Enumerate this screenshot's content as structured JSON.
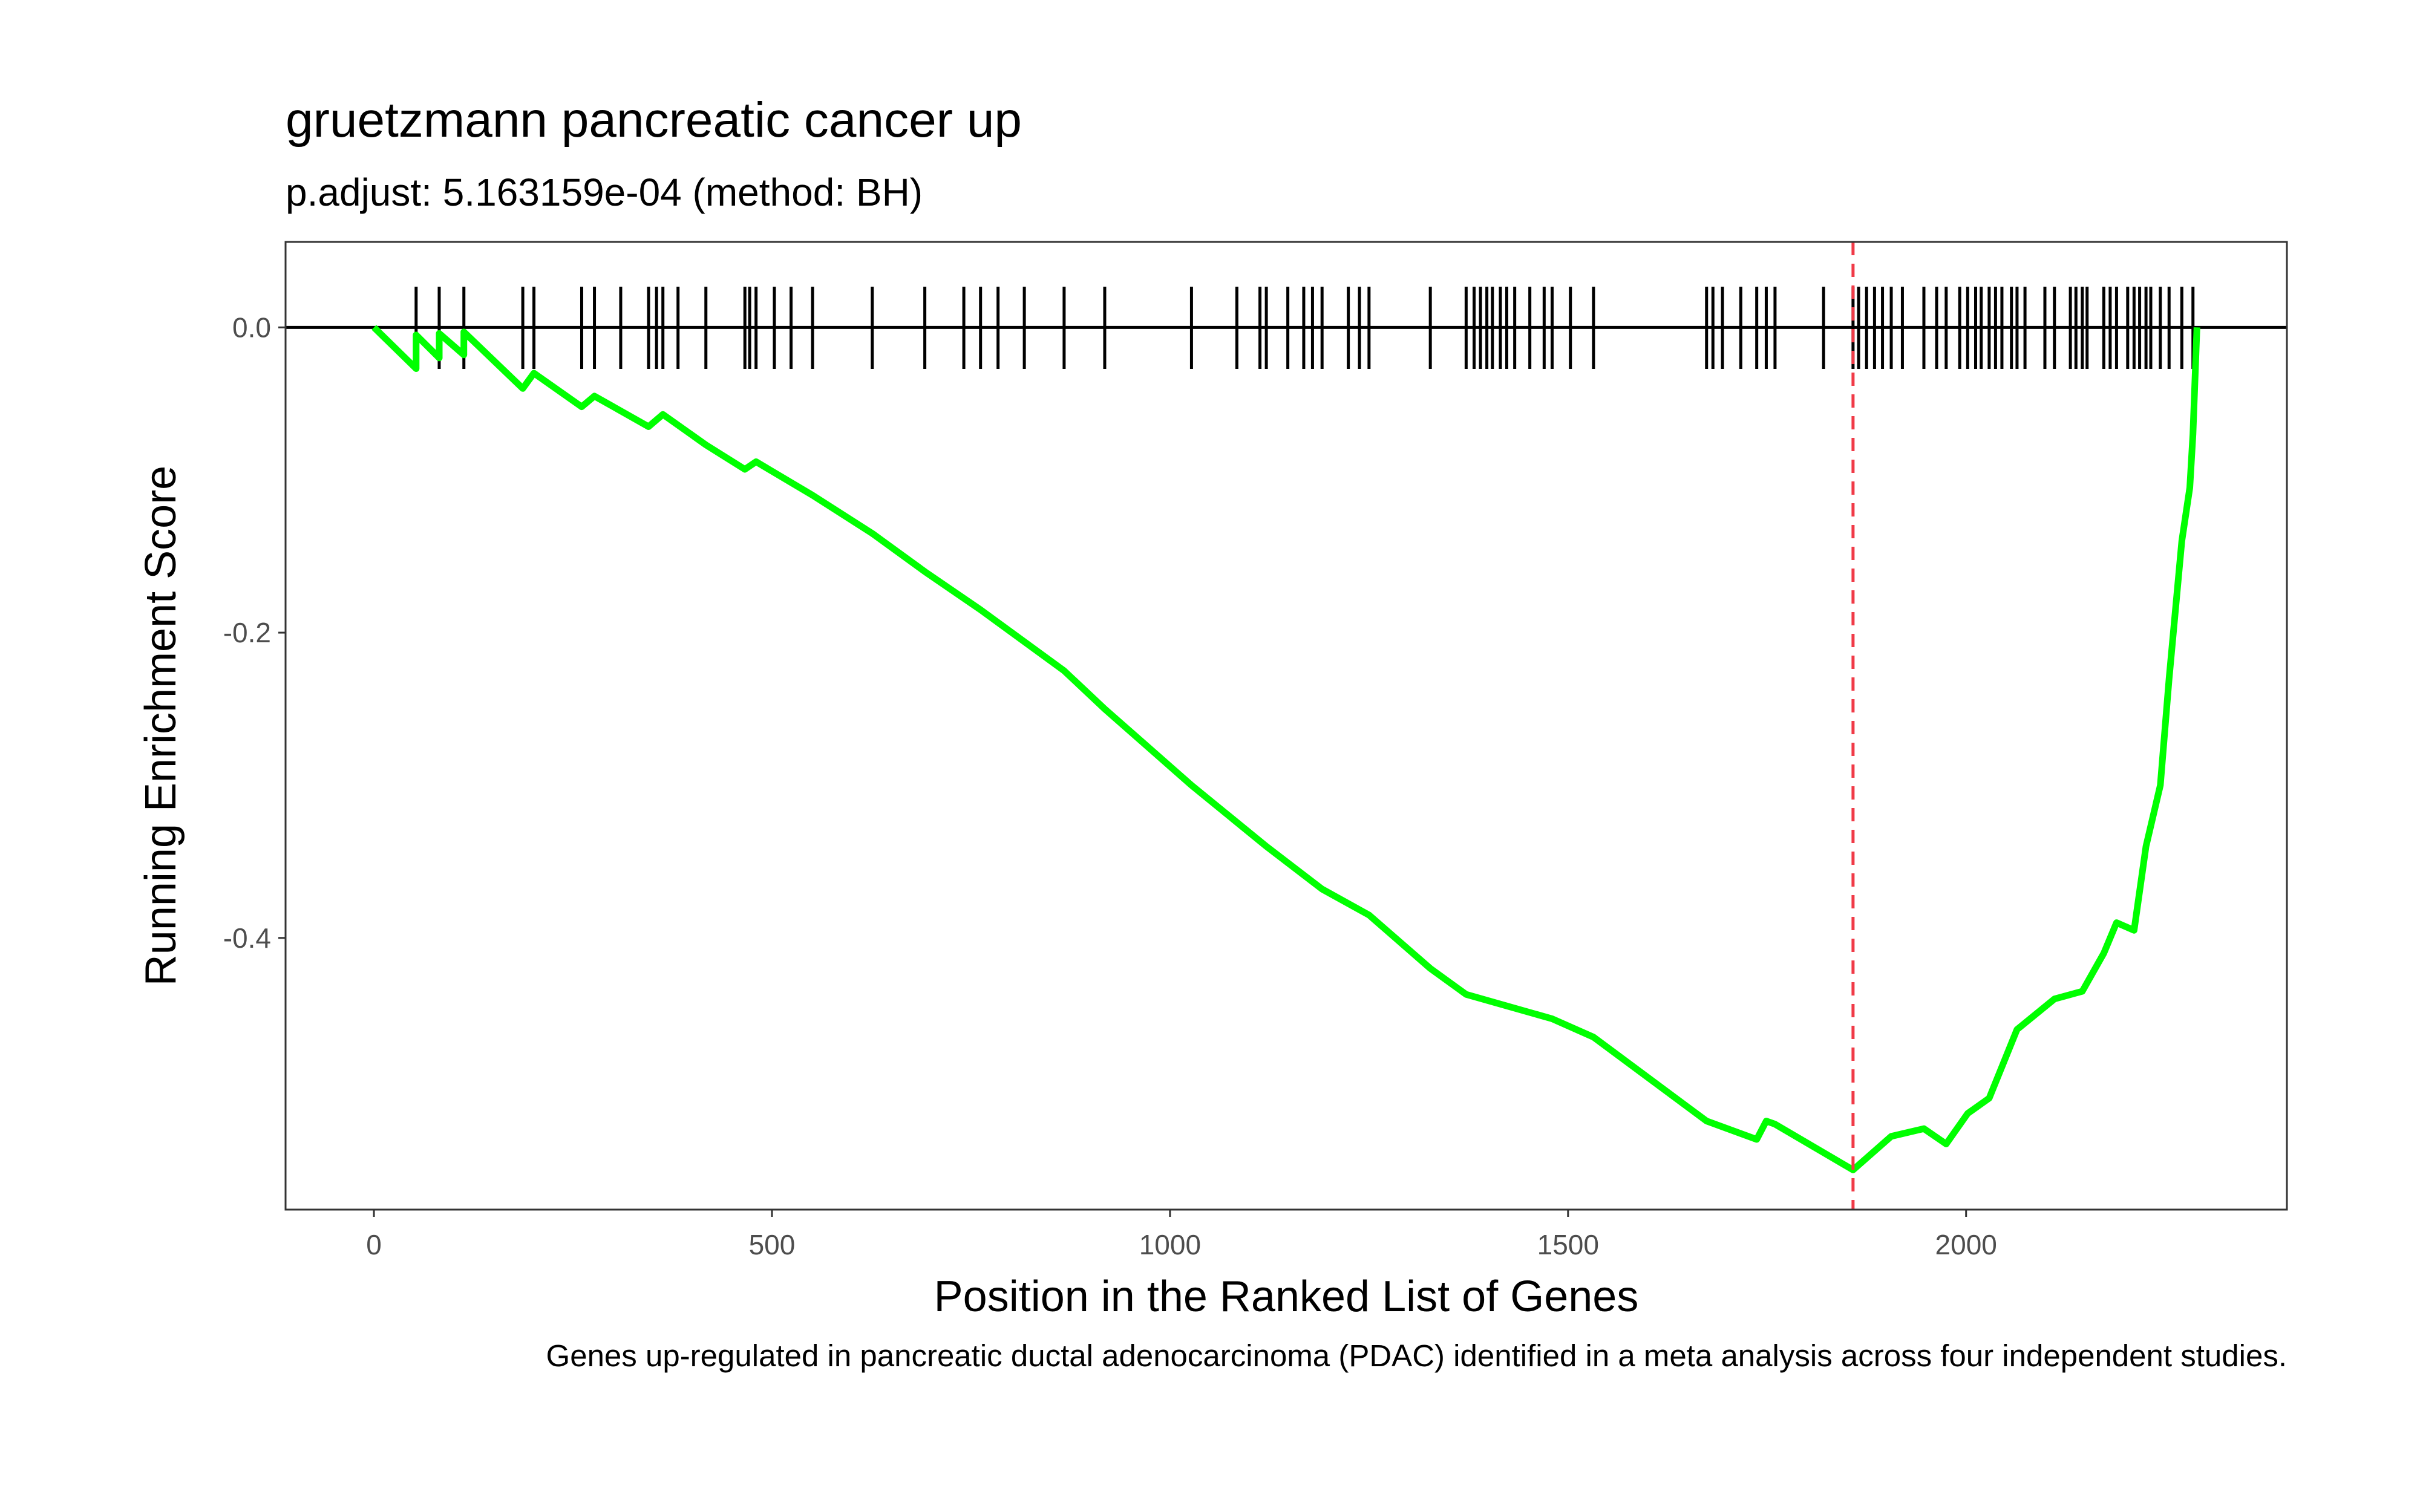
{
  "chart_data": {
    "type": "line",
    "title": "gruetzmann pancreatic cancer up",
    "subtitle": "p.adjust: 5.163159e-04 (method: BH)",
    "xlabel": "Position in the Ranked List of Genes",
    "ylabel": "Running Enrichment Score",
    "caption": "Genes up-regulated in pancreatic ductal adenocarcinoma (PDAC) identified in a meta analysis across four independent studies.",
    "xlim": [
      -111,
      2403
    ],
    "ylim": [
      -0.578,
      0.056
    ],
    "xticks": [
      0,
      500,
      1000,
      1500,
      2000
    ],
    "yticks": [
      {
        "value": 0,
        "label": "0.0"
      },
      -0.2,
      -0.4
    ],
    "grid": false,
    "hline": 0,
    "vline": 1858,
    "vline_color": "#f03a47",
    "hit_color": "#000000",
    "hits": [
      53,
      82,
      113,
      187,
      201,
      261,
      277,
      310,
      345,
      355,
      363,
      382,
      417,
      466,
      472,
      480,
      503,
      524,
      551,
      626,
      692,
      741,
      762,
      784,
      817,
      867,
      918,
      1027,
      1084,
      1113,
      1121,
      1148,
      1168,
      1179,
      1191,
      1224,
      1238,
      1250,
      1327,
      1372,
      1382,
      1390,
      1398,
      1405,
      1415,
      1423,
      1433,
      1452,
      1470,
      1480,
      1503,
      1532,
      1674,
      1682,
      1694,
      1717,
      1737,
      1749,
      1760,
      1821,
      1858,
      1865,
      1875,
      1885,
      1895,
      1906,
      1920,
      1947,
      1963,
      1975,
      1992,
      2002,
      2012,
      2019,
      2029,
      2037,
      2045,
      2057,
      2064,
      2074,
      2099,
      2111,
      2131,
      2138,
      2146,
      2152,
      2173,
      2181,
      2189,
      2203,
      2211,
      2218,
      2226,
      2232,
      2244,
      2255,
      2271,
      2285
    ],
    "series": [
      {
        "color": "#00ff00",
        "x": [
          0,
          53,
          53,
          82,
          82,
          113,
          113,
          187,
          201,
          261,
          277,
          345,
          363,
          417,
          466,
          480,
          551,
          626,
          692,
          762,
          867,
          918,
          1027,
          1121,
          1191,
          1250,
          1327,
          1372,
          1480,
          1532,
          1674,
          1737,
          1749,
          1760,
          1858,
          1906,
          1947,
          1975,
          2002,
          2029,
          2064,
          2111,
          2146,
          2173,
          2189,
          2211,
          2226,
          2244,
          2255,
          2271,
          2281,
          2285,
          2290
        ],
        "values": [
          0,
          -0.027,
          -0.005,
          -0.02,
          -0.004,
          -0.018,
          -0.003,
          -0.04,
          -0.03,
          -0.052,
          -0.045,
          -0.065,
          -0.057,
          -0.077,
          -0.093,
          -0.088,
          -0.11,
          -0.135,
          -0.16,
          -0.185,
          -0.225,
          -0.25,
          -0.3,
          -0.34,
          -0.368,
          -0.385,
          -0.42,
          -0.437,
          -0.453,
          -0.465,
          -0.52,
          -0.532,
          -0.52,
          -0.522,
          -0.552,
          -0.53,
          -0.525,
          -0.535,
          -0.515,
          -0.505,
          -0.46,
          -0.44,
          -0.435,
          -0.41,
          -0.39,
          -0.395,
          -0.34,
          -0.3,
          -0.23,
          -0.14,
          -0.105,
          -0.07,
          0
        ]
      }
    ]
  }
}
